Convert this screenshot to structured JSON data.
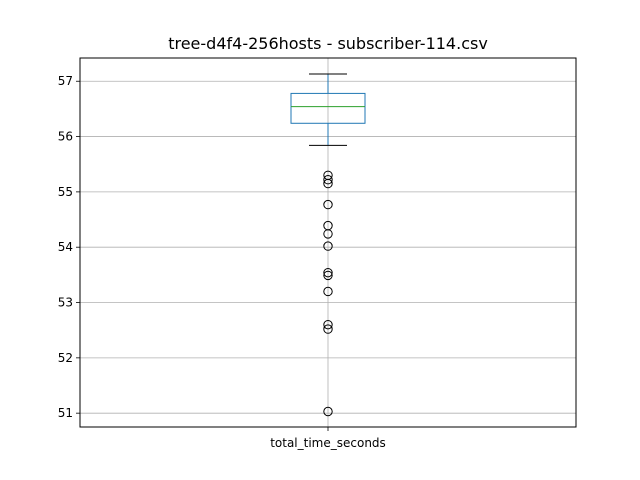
{
  "chart_data": {
    "type": "box",
    "title": "tree-d4f4-256hosts - subscriber-114.csv",
    "categories": [
      "total_time_seconds"
    ],
    "xlabel": "",
    "ylabel": "",
    "ylim": [
      50.75,
      57.42
    ],
    "yticks": [
      51,
      52,
      53,
      54,
      55,
      56,
      57
    ],
    "grid": true,
    "series": [
      {
        "box": {
          "whisker_low": 55.84,
          "q1": 56.24,
          "median": 56.54,
          "q3": 56.78,
          "whisker_high": 57.13
        },
        "outliers": [
          55.3,
          55.22,
          55.15,
          54.77,
          54.39,
          54.24,
          54.02,
          53.54,
          53.49,
          53.2,
          52.6,
          52.52,
          51.03
        ]
      }
    ],
    "colors": {
      "box": "#1f77b4",
      "median": "#2ca02c",
      "whisker_cap": "#000000",
      "outlier": "#000000",
      "grid": "#b0b0b0"
    }
  }
}
